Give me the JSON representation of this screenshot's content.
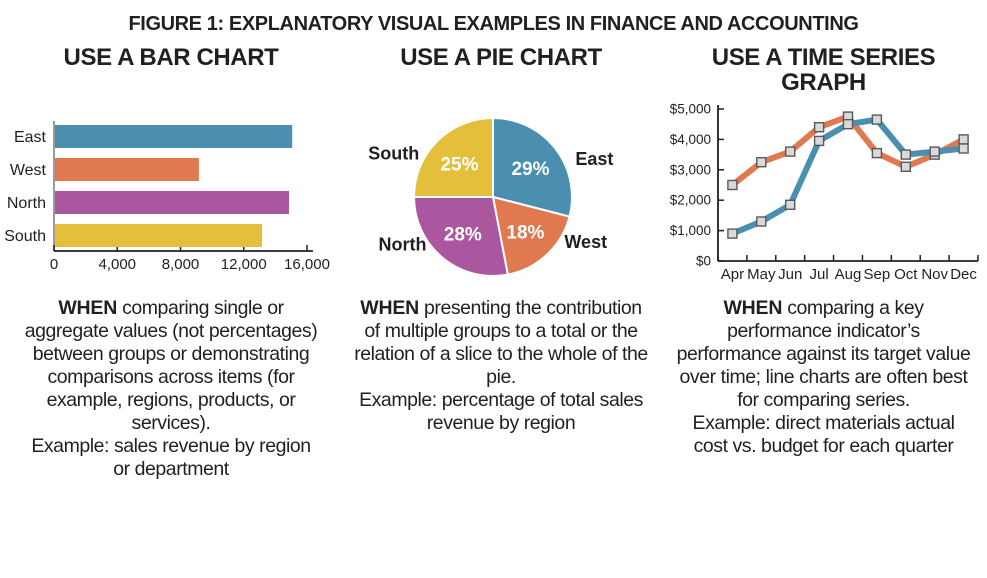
{
  "figure_title": "FIGURE 1: EXPLANATORY VISUAL EXAMPLES IN FINANCE AND ACCOUNTING",
  "text_color": "#231f20",
  "columns": [
    {
      "heading": "USE A BAR CHART",
      "when_label": "WHEN",
      "when_text": "comparing single or aggregate values (not percentages) between groups or demonstrating comparisons across items (for example, regions, products, or services).",
      "example_text": "Example: sales revenue by region or department"
    },
    {
      "heading": "USE A PIE CHART",
      "when_label": "WHEN",
      "when_text": "presenting the contribution of multiple groups to a total or the relation of a slice to the whole of the pie.",
      "example_text": "Example: percentage of total sales revenue by region"
    },
    {
      "heading": "USE A TIME SERIES GRAPH",
      "when_label": "WHEN",
      "when_text": "comparing a key performance indicator’s performance against its target value over time; line charts are often best for comparing series.",
      "example_text": "Example: direct materials actual cost vs. budget for each quarter"
    }
  ],
  "chart_data": [
    {
      "type": "bar",
      "orientation": "horizontal",
      "categories": [
        "East",
        "West",
        "North",
        "South"
      ],
      "values": [
        15000,
        9100,
        14800,
        13100
      ],
      "colors": [
        "#4a8fb0",
        "#e0794f",
        "#ab57a0",
        "#e4bf3c"
      ],
      "xlim": [
        0,
        16000
      ],
      "xticks": [
        0,
        4000,
        8000,
        12000,
        16000
      ],
      "xtick_labels": [
        "0",
        "4,000",
        "8,000",
        "12,000",
        "16,000"
      ],
      "axis_color": "#231f20",
      "y_axis_line_color": "#9b9b9b",
      "legend": "none"
    },
    {
      "type": "pie",
      "labels": [
        "East",
        "West",
        "North",
        "South"
      ],
      "values": [
        29,
        18,
        28,
        25
      ],
      "value_labels": [
        "29%",
        "18%",
        "28%",
        "25%"
      ],
      "colors": [
        "#4a8fb0",
        "#e0794f",
        "#ab57a0",
        "#e4bf3c"
      ],
      "start_angle": "top",
      "direction": "clockwise",
      "slice_separator_color": "#ffffff",
      "value_label_color": "#ffffff",
      "legend": "none"
    },
    {
      "type": "line",
      "x": [
        "Apr",
        "May",
        "Jun",
        "Jul",
        "Aug",
        "Sep",
        "Oct",
        "Nov",
        "Dec"
      ],
      "series": [
        {
          "id": "orange",
          "color": "#e0794f",
          "values": [
            2500,
            3250,
            3600,
            4400,
            4750,
            3550,
            3100,
            3500,
            4000
          ]
        },
        {
          "id": "blue",
          "color": "#4a8fb0",
          "values": [
            900,
            1300,
            1850,
            3950,
            4500,
            4650,
            3500,
            3600,
            3700
          ]
        }
      ],
      "ylim": [
        0,
        5000
      ],
      "yticks": [
        0,
        1000,
        2000,
        3000,
        4000,
        5000
      ],
      "ytick_labels": [
        "$0",
        "$1,000",
        "$2,000",
        "$3,000",
        "$4,000",
        "$5,000"
      ],
      "marker": {
        "shape": "square",
        "fill": "#d9d9d9",
        "stroke": "#57585a"
      },
      "axis_color": "#231f20",
      "legend": "none"
    }
  ]
}
